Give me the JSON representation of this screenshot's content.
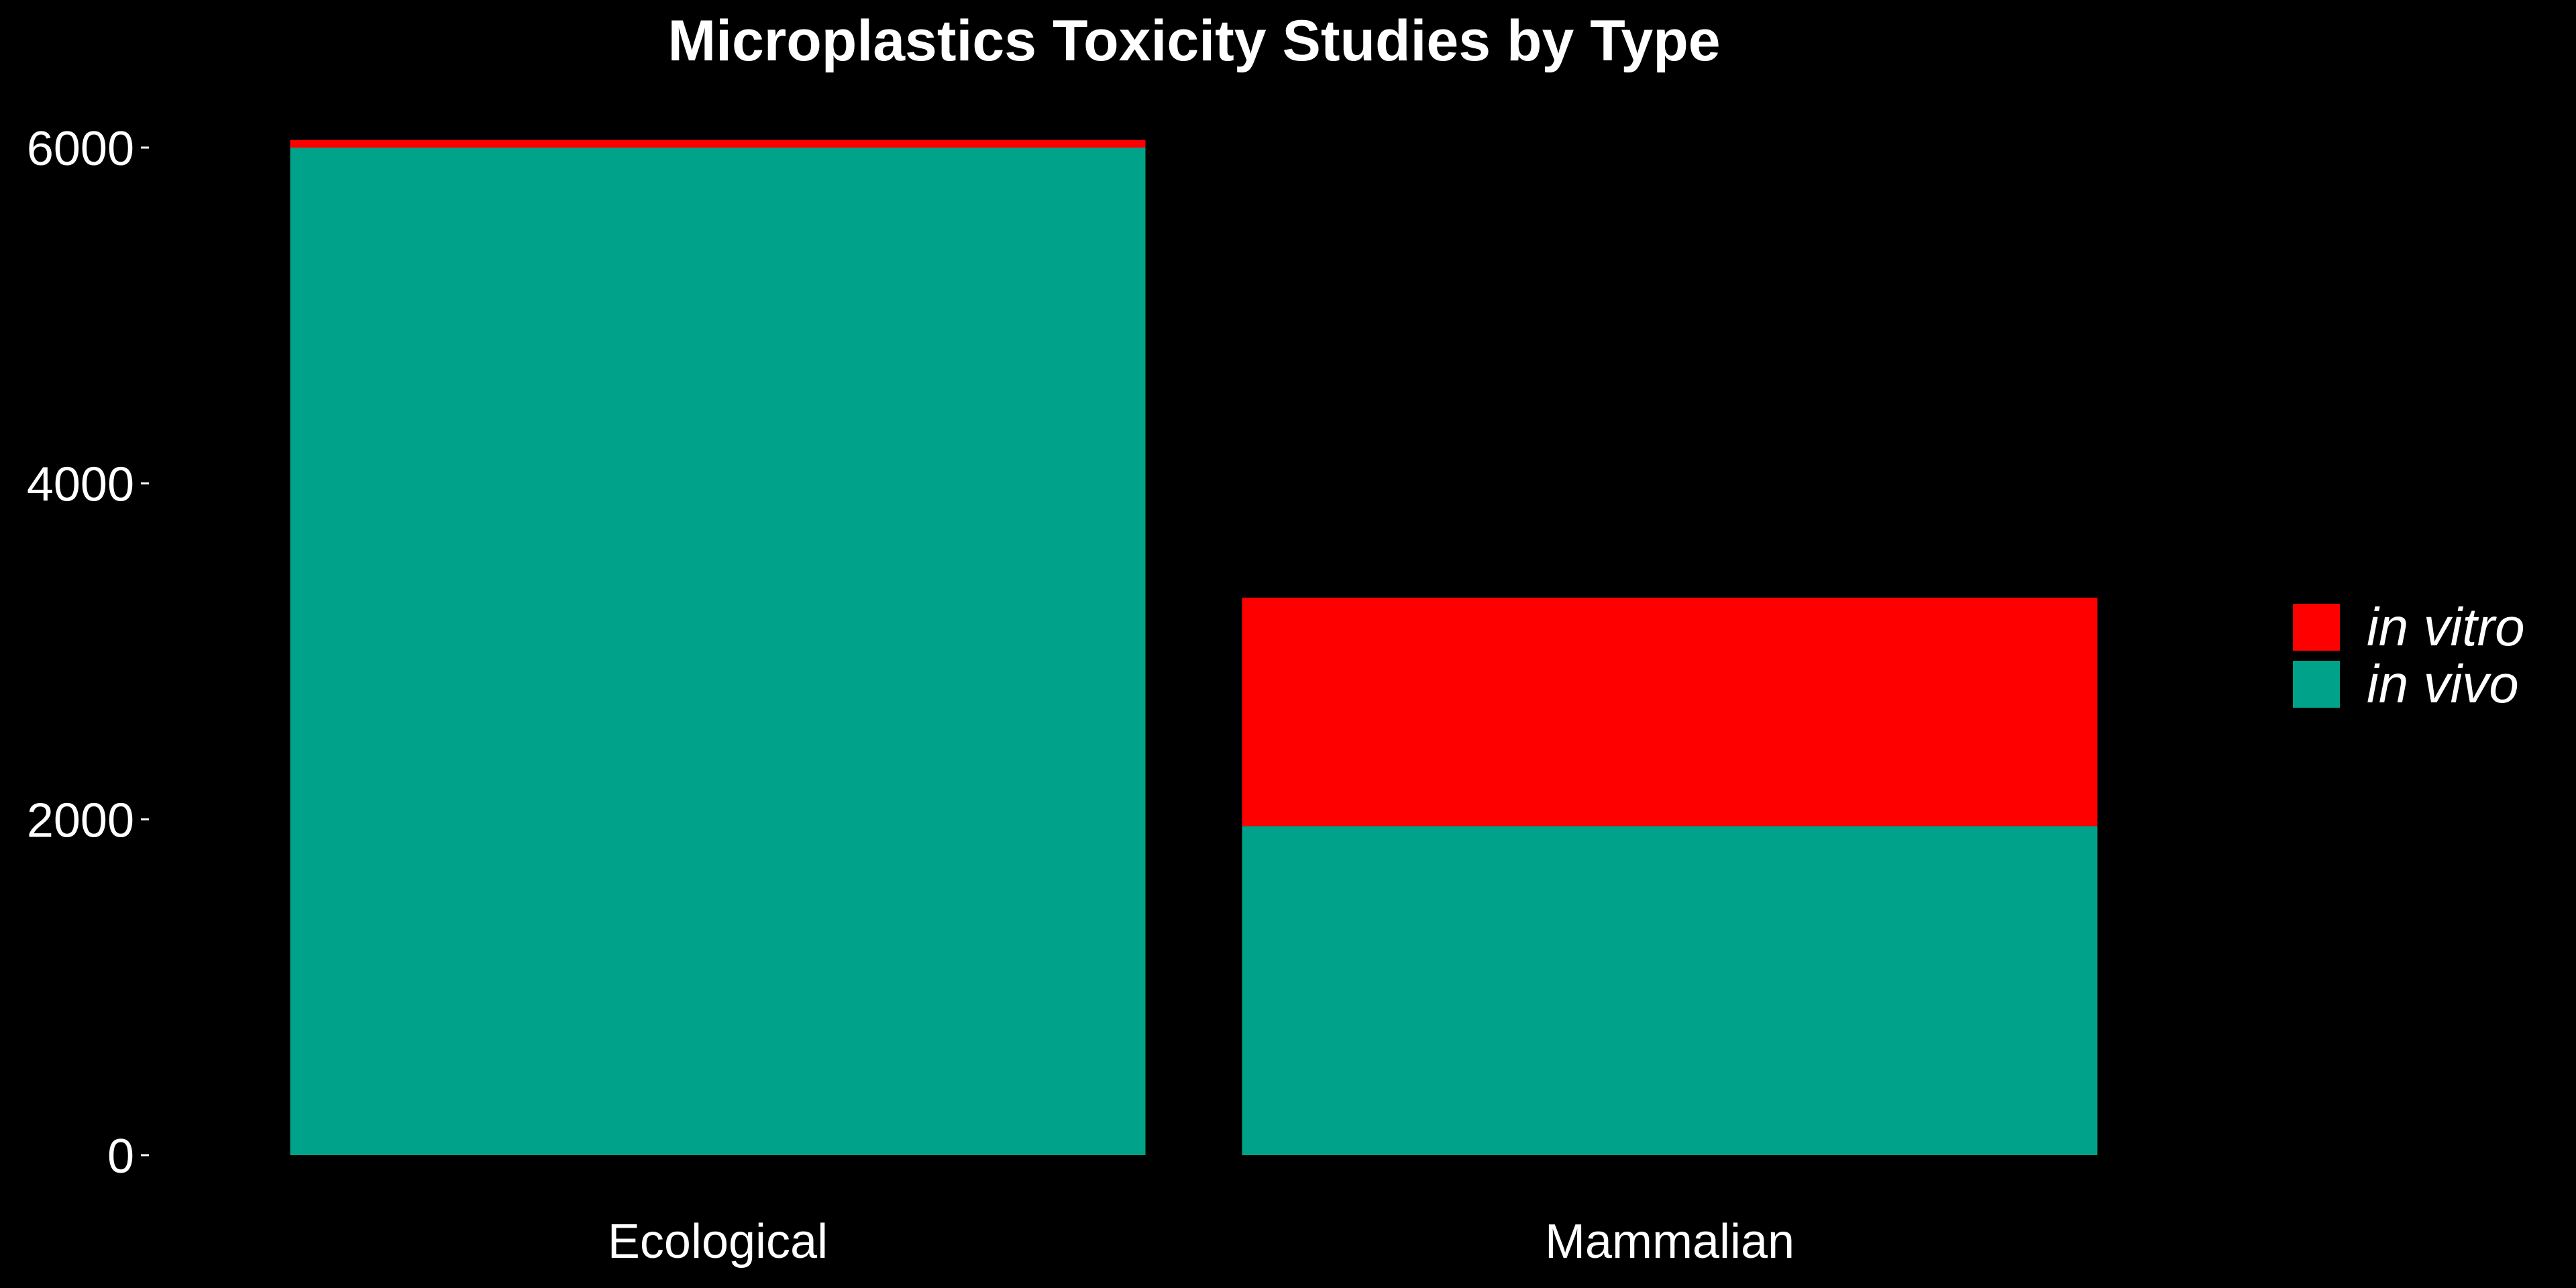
{
  "chart_data": {
    "type": "bar",
    "stacked": true,
    "title": "Microplastics Toxicity Studies by Type",
    "xlabel": "",
    "ylabel": "",
    "categories": [
      "Ecological",
      "Mammalian"
    ],
    "series": [
      {
        "name": "in vivo",
        "color": "#00A28A",
        "values": [
          6000,
          1960
        ]
      },
      {
        "name": "in vitro",
        "color": "#FF0000",
        "values": [
          45,
          1360
        ]
      }
    ],
    "ylim": [
      0,
      6200
    ],
    "yticks": [
      0,
      2000,
      4000,
      6000
    ],
    "ytick_labels": [
      "0",
      "2000",
      "4000",
      "6000"
    ],
    "legend": {
      "position": "right",
      "entries": [
        {
          "label": "in vitro",
          "color": "#FF0000"
        },
        {
          "label": "in vivo",
          "color": "#00A28A"
        }
      ]
    },
    "grid": false,
    "background": "#000000"
  }
}
